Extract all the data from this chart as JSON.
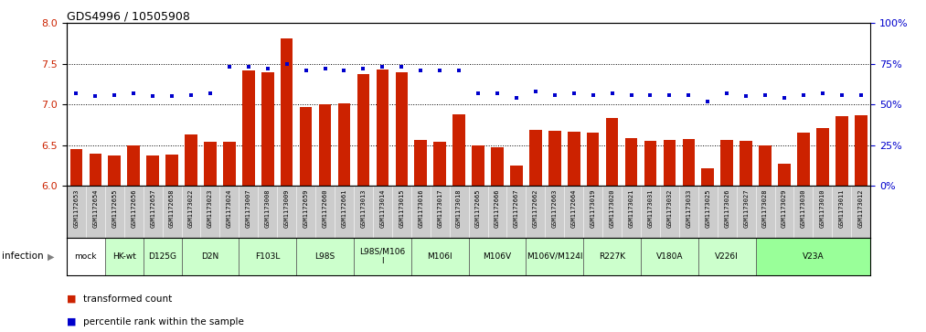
{
  "title": "GDS4996 / 10505908",
  "bar_color": "#cc2200",
  "dot_color": "#0000cc",
  "bar_values": [
    6.45,
    6.4,
    6.37,
    6.5,
    6.37,
    6.38,
    6.63,
    6.54,
    6.54,
    7.42,
    7.4,
    7.81,
    6.97,
    7.0,
    7.01,
    7.37,
    7.43,
    7.4,
    6.56,
    6.54,
    6.88,
    6.5,
    6.47,
    6.25,
    6.69,
    6.68,
    6.67,
    6.65,
    6.83,
    6.59,
    6.55,
    6.56,
    6.58,
    6.22,
    6.57,
    6.55,
    6.5,
    6.27,
    6.65,
    6.71,
    6.86,
    6.87
  ],
  "percentile_values": [
    57,
    55,
    56,
    57,
    55,
    55,
    56,
    57,
    73,
    73,
    72,
    75,
    71,
    72,
    71,
    72,
    73,
    73,
    71,
    71,
    71,
    57,
    57,
    54,
    58,
    56,
    57,
    56,
    57,
    56,
    56,
    56,
    56,
    52,
    57,
    55,
    56,
    54,
    56,
    57,
    56,
    56
  ],
  "xlabels": [
    "GSM1172653",
    "GSM1172654",
    "GSM1172655",
    "GSM1172656",
    "GSM1172657",
    "GSM1172658",
    "GSM1173022",
    "GSM1173023",
    "GSM1173024",
    "GSM1173007",
    "GSM1173008",
    "GSM1173009",
    "GSM1172659",
    "GSM1172660",
    "GSM1172661",
    "GSM1173013",
    "GSM1173014",
    "GSM1173015",
    "GSM1173016",
    "GSM1173017",
    "GSM1173018",
    "GSM1172665",
    "GSM1172666",
    "GSM1172667",
    "GSM1172662",
    "GSM1172663",
    "GSM1172664",
    "GSM1173019",
    "GSM1173020",
    "GSM1173021",
    "GSM1173031",
    "GSM1173032",
    "GSM1173033",
    "GSM1173025",
    "GSM1173026",
    "GSM1173027",
    "GSM1173028",
    "GSM1173029",
    "GSM1173030",
    "GSM1173010",
    "GSM1173011",
    "GSM1173012"
  ],
  "groups": [
    {
      "label": "mock",
      "start": 0,
      "end": 2,
      "color": "#ffffff"
    },
    {
      "label": "HK-wt",
      "start": 2,
      "end": 4,
      "color": "#ccffcc"
    },
    {
      "label": "D125G",
      "start": 4,
      "end": 6,
      "color": "#ccffcc"
    },
    {
      "label": "D2N",
      "start": 6,
      "end": 9,
      "color": "#ccffcc"
    },
    {
      "label": "F103L",
      "start": 9,
      "end": 12,
      "color": "#ccffcc"
    },
    {
      "label": "L98S",
      "start": 12,
      "end": 15,
      "color": "#ccffcc"
    },
    {
      "label": "L98S/M106\nI",
      "start": 15,
      "end": 18,
      "color": "#ccffcc"
    },
    {
      "label": "M106I",
      "start": 18,
      "end": 21,
      "color": "#ccffcc"
    },
    {
      "label": "M106V",
      "start": 21,
      "end": 24,
      "color": "#ccffcc"
    },
    {
      "label": "M106V/M124I",
      "start": 24,
      "end": 27,
      "color": "#ccffcc"
    },
    {
      "label": "R227K",
      "start": 27,
      "end": 30,
      "color": "#ccffcc"
    },
    {
      "label": "V180A",
      "start": 30,
      "end": 33,
      "color": "#ccffcc"
    },
    {
      "label": "V226I",
      "start": 33,
      "end": 36,
      "color": "#ccffcc"
    },
    {
      "label": "V23A",
      "start": 36,
      "end": 42,
      "color": "#99ff99"
    }
  ],
  "ylim_left": [
    6.0,
    8.0
  ],
  "ylim_right": [
    0,
    100
  ],
  "yticks_left": [
    6.0,
    6.5,
    7.0,
    7.5,
    8.0
  ],
  "yticks_right": [
    0,
    25,
    50,
    75,
    100
  ],
  "grid_values": [
    6.5,
    7.0,
    7.5
  ],
  "legend_transformed": "transformed count",
  "legend_percentile": "percentile rank within the sample",
  "xtick_bg_color": "#cccccc",
  "infection_label": "infection"
}
